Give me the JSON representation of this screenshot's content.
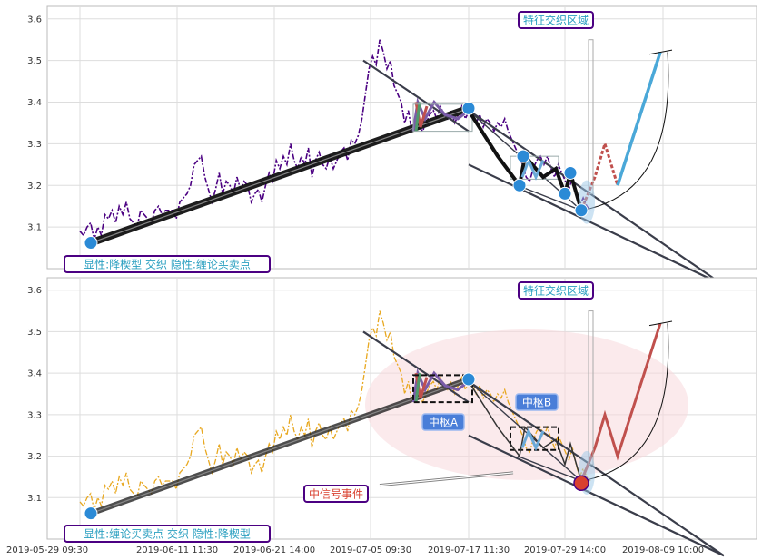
{
  "chart_data": [
    {
      "type": "line",
      "panel": "top",
      "ylim": [
        3.0,
        3.63
      ],
      "yticks": [
        3.1,
        3.2,
        3.3,
        3.4,
        3.5,
        3.6
      ],
      "price_color": "#4b0082",
      "price_series": [
        3.09,
        3.08,
        3.1,
        3.11,
        3.07,
        3.1,
        3.08,
        3.13,
        3.12,
        3.14,
        3.11,
        3.15,
        3.13,
        3.16,
        3.12,
        3.11,
        3.1,
        3.14,
        3.13,
        3.12,
        3.11,
        3.14,
        3.15,
        3.13,
        3.14,
        3.14,
        3.14,
        3.12,
        3.16,
        3.17,
        3.18,
        3.2,
        3.25,
        3.26,
        3.27,
        3.22,
        3.19,
        3.16,
        3.19,
        3.23,
        3.18,
        3.21,
        3.2,
        3.18,
        3.22,
        3.19,
        3.21,
        3.2,
        3.16,
        3.18,
        3.19,
        3.16,
        3.2,
        3.23,
        3.21,
        3.26,
        3.24,
        3.27,
        3.25,
        3.3,
        3.26,
        3.24,
        3.27,
        3.25,
        3.29,
        3.22,
        3.26,
        3.28,
        3.25,
        3.24,
        3.27,
        3.24,
        3.26,
        3.28,
        3.29,
        3.26,
        3.31,
        3.3,
        3.32,
        3.36,
        3.42,
        3.48,
        3.51,
        3.49,
        3.55,
        3.52,
        3.48,
        3.5,
        3.44,
        3.42,
        3.4,
        3.35,
        3.38,
        3.33,
        3.36,
        3.34,
        3.33,
        3.35,
        3.37,
        3.38,
        3.36,
        3.39,
        3.37,
        3.36,
        3.38,
        3.35,
        3.37,
        3.39,
        3.36,
        3.38,
        3.37,
        3.35,
        3.37,
        3.34,
        3.36,
        3.35,
        3.33,
        3.35,
        3.34,
        3.36,
        3.33,
        3.31,
        3.29,
        3.27,
        3.25,
        3.22,
        3.21,
        3.24,
        3.26,
        3.27,
        3.25,
        3.27,
        3.24,
        3.22,
        3.25,
        3.23,
        3.21,
        3.19,
        3.22,
        3.18,
        3.15,
        3.17,
        3.15,
        3.14
      ],
      "annotations": [
        {
          "text": "特征交织区域",
          "kind": "box"
        },
        {
          "text": "显性:降楔型 交织 隐性:缠论买卖点",
          "kind": "box"
        }
      ]
    },
    {
      "type": "line",
      "panel": "bottom",
      "ylim": [
        3.0,
        3.63
      ],
      "yticks": [
        3.1,
        3.2,
        3.3,
        3.4,
        3.5,
        3.6
      ],
      "price_color": "#e8a820",
      "xticks": [
        "2019-05-29 09:30",
        "2019-06-11 11:30",
        "2019-06-21 14:00",
        "2019-07-05 09:30",
        "2019-07-17 11:30",
        "2019-07-29 14:00",
        "2019-08-09 10:00"
      ],
      "annotations": [
        {
          "text": "特征交织区域",
          "kind": "box"
        },
        {
          "text": "中枢A",
          "kind": "label"
        },
        {
          "text": "中枢B",
          "kind": "label"
        },
        {
          "text": "中信号事件",
          "kind": "box"
        },
        {
          "text": "显性:缠论买卖点 交织 隐性:降楔型",
          "kind": "box"
        }
      ]
    }
  ]
}
